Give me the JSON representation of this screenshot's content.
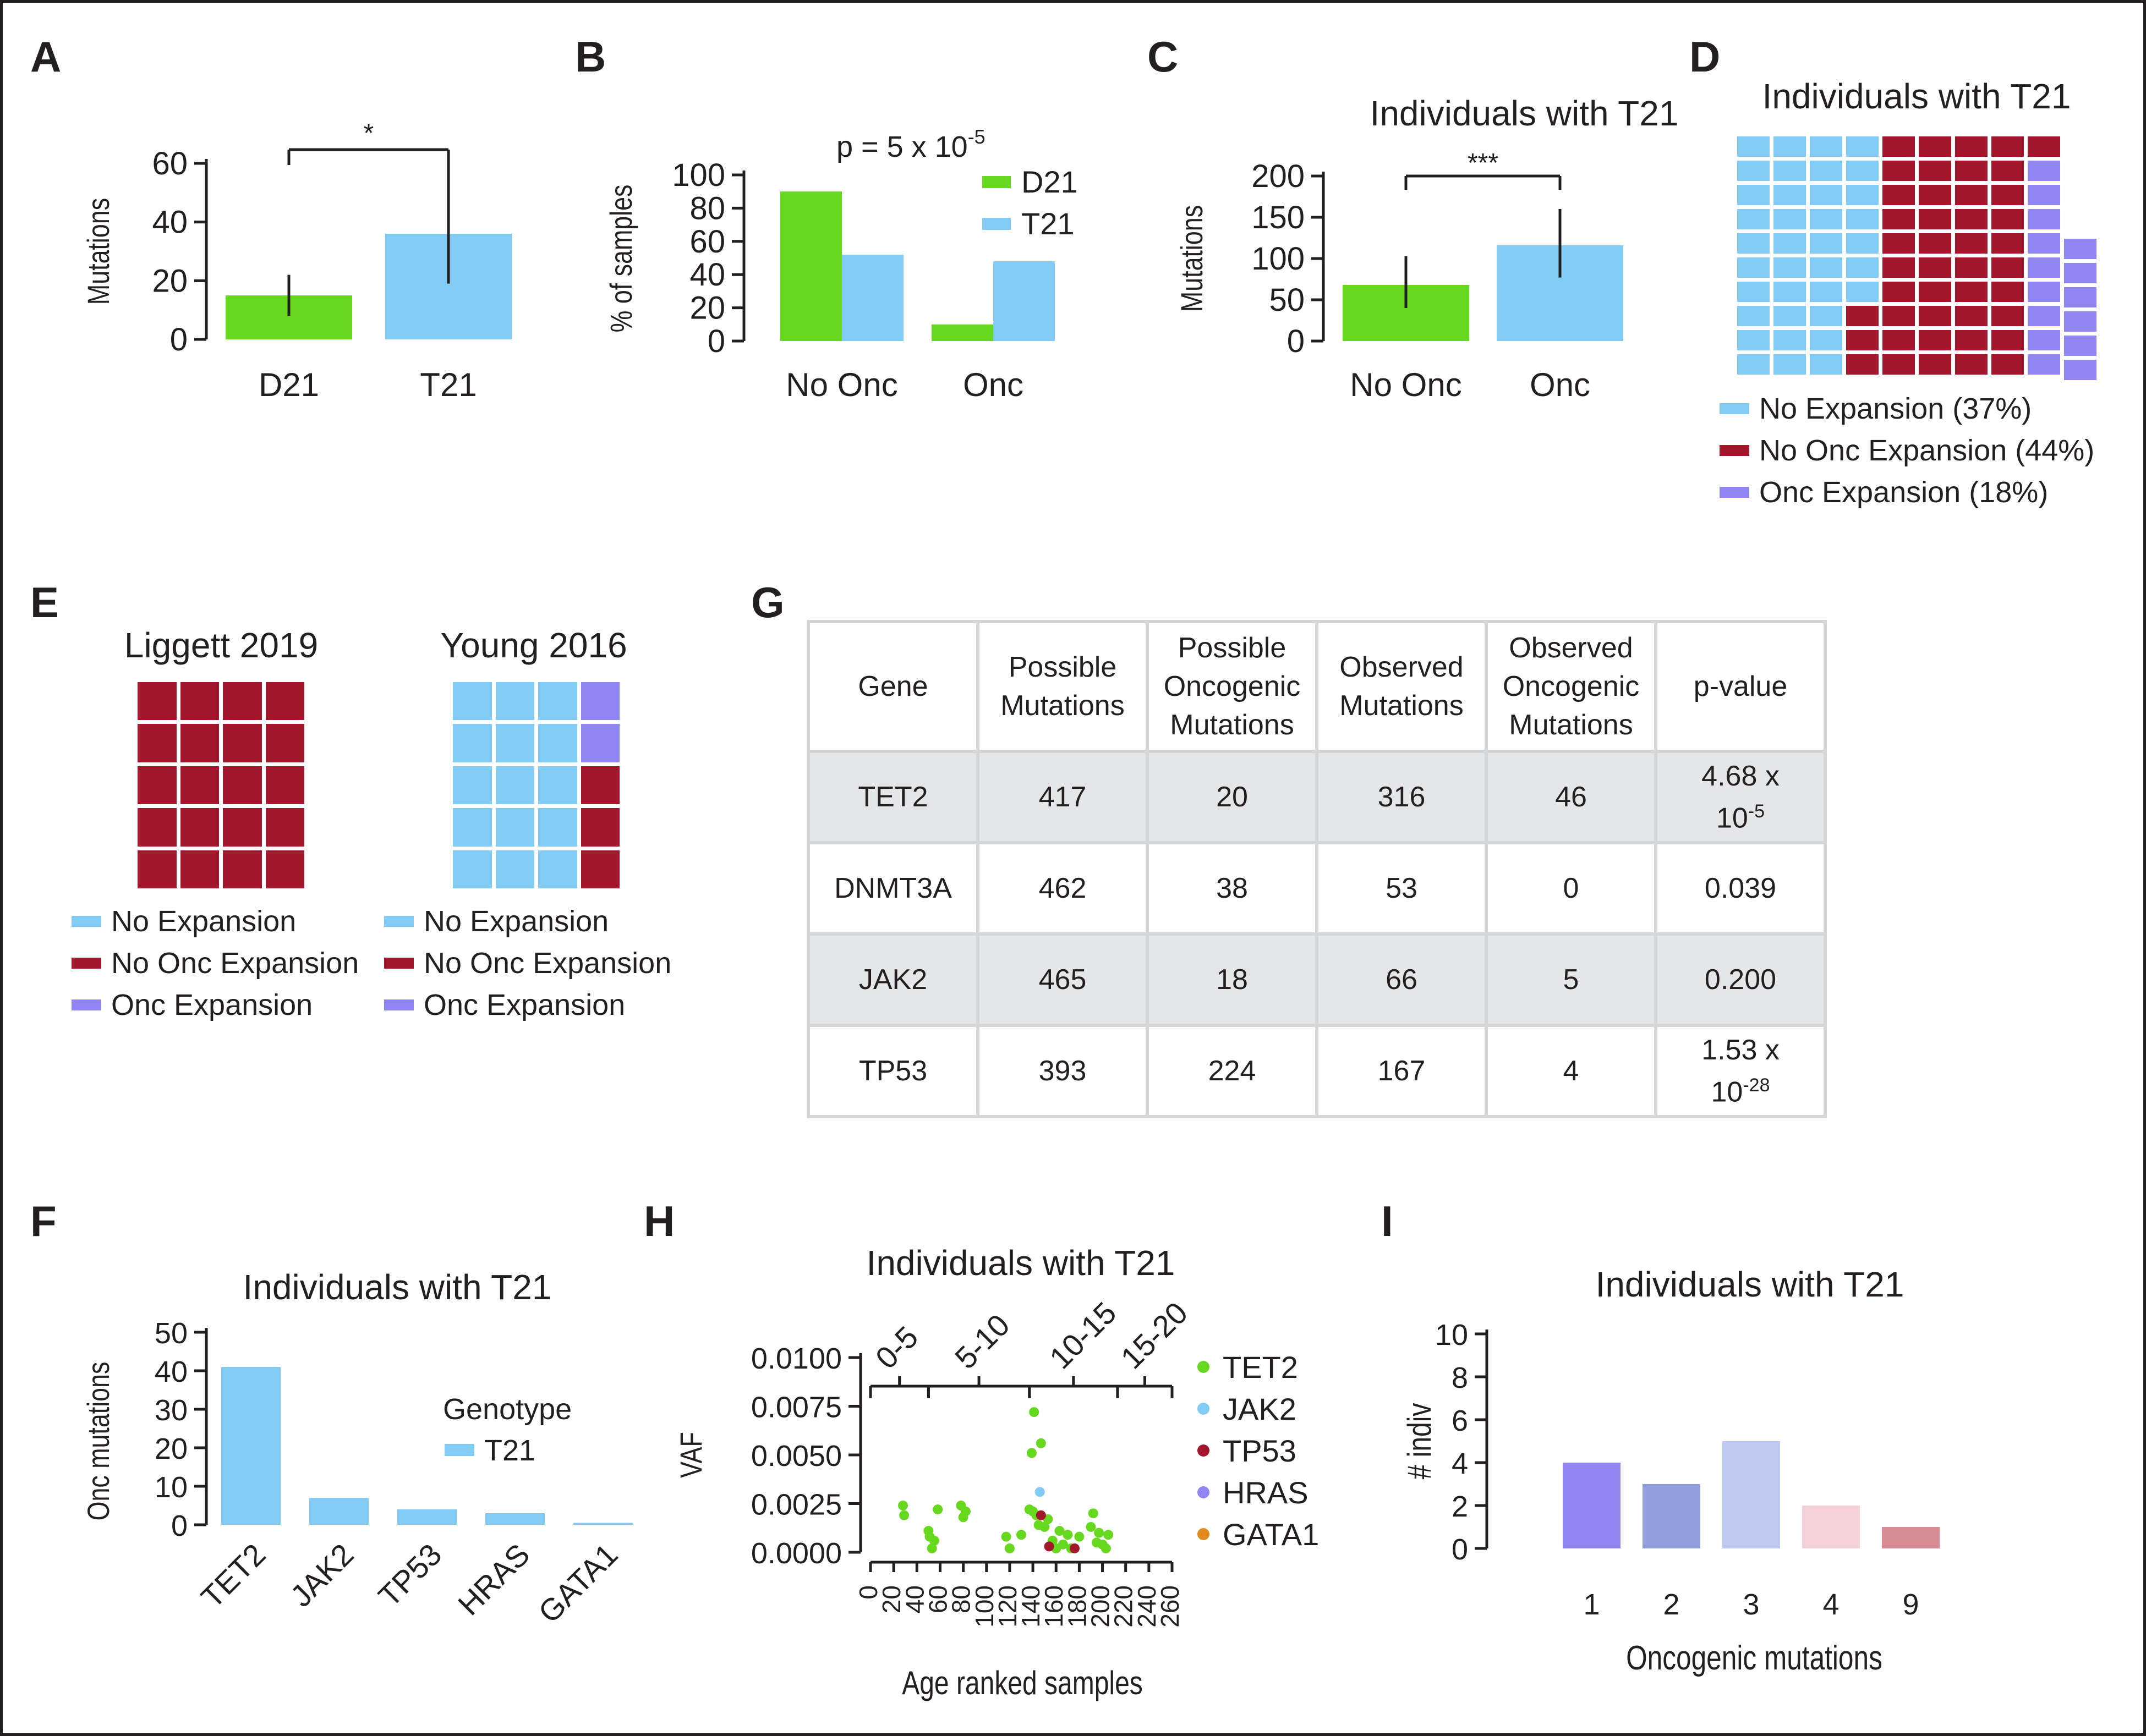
{
  "panel_labels": {
    "A": "A",
    "B": "B",
    "C": "C",
    "D": "D",
    "E": "E",
    "F": "F",
    "G": "G",
    "H": "H",
    "I": "I"
  },
  "colors": {
    "d21": "#66d81e",
    "t21": "#82cbf4",
    "no_expansion": "#82cbf4",
    "no_onc_expansion": "#a2172b",
    "onc_expansion": "#8f86f1",
    "tet2": "#66d81e",
    "jak2": "#82cbf4",
    "tp53": "#a2172b",
    "hras": "#8f86f1",
    "gata1": "#e08a20",
    "axis": "#231f20",
    "table_border": "#d4d6d8",
    "table_shade": "#e5e6e8"
  },
  "chart_data": [
    {
      "id": "A",
      "type": "bar",
      "title": "",
      "xlabel": "",
      "ylabel": "Mutations",
      "categories": [
        "D21",
        "T21"
      ],
      "values": [
        15,
        36
      ],
      "errors": [
        [
          8,
          22
        ],
        [
          19,
          57
        ]
      ],
      "ylim": [
        0,
        60
      ],
      "yticks": [
        0,
        20,
        40,
        60
      ],
      "significance": {
        "from": "D21",
        "to": "T21",
        "label": "*"
      }
    },
    {
      "id": "B",
      "type": "bar",
      "title": "",
      "xlabel": "",
      "ylabel": "% of samples",
      "categories": [
        "No Onc",
        "Onc"
      ],
      "series": [
        {
          "name": "D21",
          "values": [
            90,
            10
          ]
        },
        {
          "name": "T21",
          "values": [
            52,
            48
          ]
        }
      ],
      "ylim": [
        0,
        100
      ],
      "yticks": [
        0,
        20,
        40,
        60,
        80,
        100
      ],
      "annotation": {
        "text": "p = 5 x 10",
        "exponent": "-5"
      }
    },
    {
      "id": "C",
      "type": "bar",
      "title": "Individuals with T21",
      "xlabel": "",
      "ylabel": "Mutations",
      "categories": [
        "No Onc",
        "Onc"
      ],
      "values": [
        68,
        116
      ],
      "errors": [
        [
          40,
          103
        ],
        [
          77,
          160
        ]
      ],
      "ylim": [
        0,
        200
      ],
      "yticks": [
        0,
        50,
        100,
        150,
        200
      ],
      "significance": {
        "from": "No Onc",
        "to": "Onc",
        "label": "***"
      }
    },
    {
      "id": "D",
      "type": "waffle",
      "title": "Individuals with T21",
      "categories": [
        "No Expansion (37%)",
        "No Onc Expansion (44%)",
        "Onc Expansion (18%)"
      ],
      "values": [
        37,
        44,
        18
      ]
    },
    {
      "id": "E",
      "type": "waffle",
      "panels": [
        {
          "title": "Liggett 2019",
          "counts": {
            "no_expansion": 0,
            "no_onc_expansion": 20,
            "onc_expansion": 0
          }
        },
        {
          "title": "Young 2016",
          "counts": {
            "no_expansion": 15,
            "no_onc_expansion": 3,
            "onc_expansion": 2
          }
        }
      ],
      "legend": [
        "No Expansion",
        "No Onc Expansion",
        "Onc Expansion"
      ]
    },
    {
      "id": "F",
      "type": "bar",
      "title": "Individuals with T21",
      "xlabel": "",
      "ylabel": "Onc mutations",
      "categories": [
        "TET2",
        "JAK2",
        "TP53",
        "HRAS",
        "GATA1"
      ],
      "values": [
        41,
        7,
        4,
        3,
        0.5
      ],
      "ylim": [
        0,
        50
      ],
      "yticks": [
        0,
        10,
        20,
        30,
        40,
        50
      ],
      "legend_title": "Genotype",
      "legend": [
        "T21"
      ]
    },
    {
      "id": "G",
      "type": "table",
      "columns": [
        "Gene",
        "Possible Mutations",
        "Possible Oncogenic Mutations",
        "Observed Mutations",
        "Observed Oncogenic Mutations",
        "p-value"
      ],
      "rows": [
        {
          "gene": "TET2",
          "possible": "417",
          "possible_onc": "20",
          "observed": "316",
          "observed_onc": "46",
          "p_base": "4.68 x",
          "p_pow": "10",
          "p_exp": "-5"
        },
        {
          "gene": "DNMT3A",
          "possible": "462",
          "possible_onc": "38",
          "observed": "53",
          "observed_onc": "0",
          "p_value": "0.039"
        },
        {
          "gene": "JAK2",
          "possible": "465",
          "possible_onc": "18",
          "observed": "66",
          "observed_onc": "5",
          "p_value": "0.200"
        },
        {
          "gene": "TP53",
          "possible": "393",
          "possible_onc": "224",
          "observed": "167",
          "observed_onc": "4",
          "p_base": "1.53 x",
          "p_pow": "10",
          "p_exp": "-28"
        }
      ]
    },
    {
      "id": "H",
      "type": "scatter",
      "title": "Individuals with T21",
      "xlabel": "Age ranked samples",
      "ylabel": "VAF",
      "xlim": [
        0,
        260
      ],
      "xticks": [
        0,
        20,
        40,
        60,
        80,
        100,
        120,
        140,
        160,
        180,
        200,
        220,
        240,
        260
      ],
      "ylim": [
        0,
        0.01
      ],
      "yticks": [
        "0.0000",
        "0.0025",
        "0.0050",
        "0.0075",
        "0.0100"
      ],
      "age_groups": [
        {
          "label": "0-5",
          "range": [
            0,
            50
          ]
        },
        {
          "label": "5-10",
          "range": [
            50,
            137
          ]
        },
        {
          "label": "10-15",
          "range": [
            137,
            213
          ]
        },
        {
          "label": "15-20",
          "range": [
            213,
            260
          ]
        }
      ],
      "legend": [
        "TET2",
        "JAK2",
        "TP53",
        "HRAS",
        "GATA1"
      ],
      "series": [
        {
          "name": "TET2",
          "points": [
            [
              28,
              0.0024
            ],
            [
              29,
              0.0019
            ],
            [
              50,
              0.0011
            ],
            [
              51,
              0.0008
            ],
            [
              53,
              0.0002
            ],
            [
              55,
              0.0006
            ],
            [
              58,
              0.0022
            ],
            [
              78,
              0.0024
            ],
            [
              80,
              0.0018
            ],
            [
              82,
              0.0021
            ],
            [
              117,
              0.0008
            ],
            [
              120,
              0.0002
            ],
            [
              130,
              0.0009
            ],
            [
              137,
              0.0022
            ],
            [
              139,
              0.0051
            ],
            [
              140,
              0.0021
            ],
            [
              141,
              0.0072
            ],
            [
              143,
              0.0019
            ],
            [
              145,
              0.0014
            ],
            [
              147,
              0.0056
            ],
            [
              150,
              0.0013
            ],
            [
              153,
              0.0017
            ],
            [
              157,
              0.0006
            ],
            [
              160,
              0.0002
            ],
            [
              163,
              0.0011
            ],
            [
              166,
              0.0004
            ],
            [
              170,
              0.0009
            ],
            [
              173,
              0.0002
            ],
            [
              180,
              0.0008
            ],
            [
              190,
              0.0013
            ],
            [
              192,
              0.002
            ],
            [
              195,
              0.0005
            ],
            [
              197,
              0.001
            ],
            [
              200,
              0.0004
            ],
            [
              203,
              0.0002
            ],
            [
              205,
              0.0009
            ]
          ]
        },
        {
          "name": "JAK2",
          "points": [
            [
              146,
              0.0031
            ]
          ]
        },
        {
          "name": "TP53",
          "points": [
            [
              147,
              0.0019
            ],
            [
              154,
              0.0003
            ],
            [
              176,
              0.0002
            ]
          ]
        },
        {
          "name": "HRAS",
          "points": []
        },
        {
          "name": "GATA1",
          "points": []
        }
      ]
    },
    {
      "id": "I",
      "type": "bar",
      "title": "Individuals with T21",
      "xlabel": "Oncogenic mutations",
      "ylabel": "# indiv",
      "categories": [
        "1",
        "2",
        "3",
        "4",
        "9"
      ],
      "values": [
        4,
        3,
        5,
        2,
        1
      ],
      "bar_colors": [
        "#8f86f1",
        "#929fdc",
        "#bec9ef",
        "#f4d0d7",
        "#d88c96"
      ],
      "ylim": [
        0,
        10
      ],
      "yticks": [
        0,
        2,
        4,
        6,
        8,
        10
      ]
    }
  ]
}
